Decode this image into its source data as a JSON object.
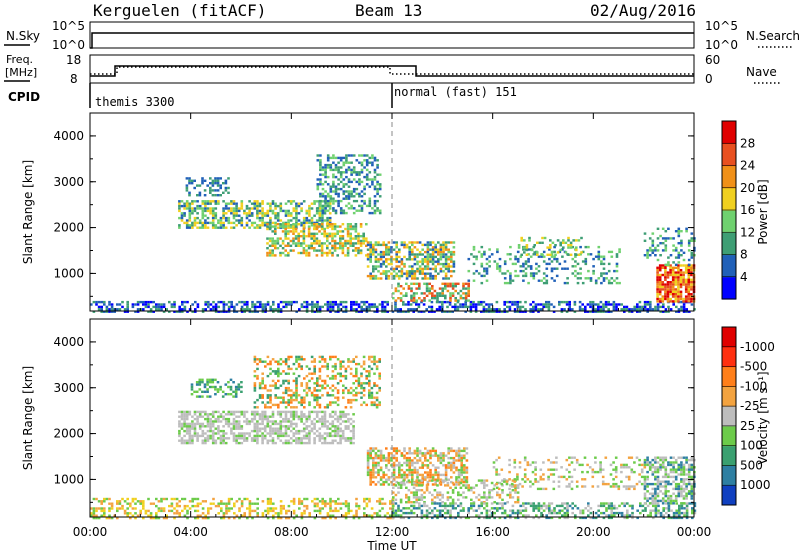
{
  "header": {
    "station": "Kerguelen (fitACF)",
    "beam": "Beam 13",
    "date": "02/Aug/2016"
  },
  "colors": {
    "axis": "#000000",
    "grid_dash": "#888888",
    "background": "#ffffff"
  },
  "sky_panel": {
    "left_label": "N.Sky",
    "left_ticks": [
      "10^5",
      "10^0"
    ],
    "right_ticks": [
      "10^5",
      "10^0"
    ],
    "right_label": "N.Search"
  },
  "freq_panel": {
    "left_label_1": "Freq.",
    "left_label_2": "[MHz]",
    "left_ticks": [
      "18",
      "8"
    ],
    "right_ticks": [
      "60",
      "0"
    ],
    "right_label": "Nave",
    "cpid_label": "CPID"
  },
  "cpid": [
    {
      "label": "themis 3300",
      "start_hour": 0.0
    },
    {
      "label": "normal (fast) 151",
      "start_hour": 12.0
    }
  ],
  "chart_data": [
    {
      "type": "heatmap",
      "title": "",
      "ylabel": "Slant Range [km]",
      "xlabel": "",
      "y_ticks": [
        "1000",
        "2000",
        "3000",
        "4000"
      ],
      "ylim": [
        180,
        4500
      ],
      "xlim_hours": [
        0,
        24
      ],
      "colorbar_label": "Power [dB]",
      "colorbar_ticks": [
        "4",
        "8",
        "12",
        "16",
        "20",
        "24",
        "28"
      ],
      "colorbar_colors": [
        "#0000ff",
        "#2060b8",
        "#3e9e74",
        "#6fd16f",
        "#f0d020",
        "#f09018",
        "#e85020",
        "#e00000"
      ]
    },
    {
      "type": "heatmap",
      "title": "",
      "ylabel": "Slant Range [km]",
      "xlabel": "Time UT",
      "y_ticks": [
        "1000",
        "2000",
        "3000",
        "4000"
      ],
      "ylim": [
        180,
        4500
      ],
      "xlim_hours": [
        0,
        24
      ],
      "colorbar_label": "Velocity  [m s⁻¹]",
      "colorbar_ticks": [
        "1000",
        "500",
        "100",
        "25",
        "-25",
        "-100",
        "-500",
        "-1000"
      ],
      "colorbar_colors": [
        "#1040c0",
        "#2e7fa2",
        "#3aa070",
        "#6ccb4a",
        "#bdbdbd",
        "#f3a340",
        "#ff7f1a",
        "#ff3010",
        "#e00000"
      ]
    }
  ],
  "x_ticks": [
    "00:00",
    "04:00",
    "08:00",
    "12:00",
    "16:00",
    "20:00",
    "00:00"
  ],
  "x_label": "Time UT",
  "blobs_power": [
    {
      "h0": 0.0,
      "h1": 24.0,
      "r0": 180,
      "r1": 400,
      "c": [
        "#0000ff",
        "#2060b8",
        "#3e9e74"
      ],
      "d": 0.55
    },
    {
      "h0": 3.5,
      "h1": 9.5,
      "r0": 2000,
      "r1": 2600,
      "c": [
        "#2060b8",
        "#3e9e74",
        "#6fd16f",
        "#f0d020"
      ],
      "d": 0.6
    },
    {
      "h0": 3.8,
      "h1": 5.5,
      "r0": 2700,
      "r1": 3100,
      "c": [
        "#2060b8",
        "#3e9e74"
      ],
      "d": 0.4
    },
    {
      "h0": 7.0,
      "h1": 11.0,
      "r0": 1400,
      "r1": 2100,
      "c": [
        "#3e9e74",
        "#6fd16f",
        "#f0d020",
        "#f09018"
      ],
      "d": 0.55
    },
    {
      "h0": 9.0,
      "h1": 11.5,
      "r0": 2300,
      "r1": 3600,
      "c": [
        "#2060b8",
        "#3e9e74",
        "#6fd16f"
      ],
      "d": 0.45
    },
    {
      "h0": 11.0,
      "h1": 14.5,
      "r0": 900,
      "r1": 1700,
      "c": [
        "#2060b8",
        "#3e9e74",
        "#6fd16f",
        "#f0d020",
        "#f09018"
      ],
      "d": 0.6
    },
    {
      "h0": 12.0,
      "h1": 15.0,
      "r0": 400,
      "r1": 800,
      "c": [
        "#3e9e74",
        "#6fd16f",
        "#f09018",
        "#e85020"
      ],
      "d": 0.5
    },
    {
      "h0": 15.0,
      "h1": 21.0,
      "r0": 800,
      "r1": 1600,
      "c": [
        "#2060b8",
        "#3e9e74",
        "#6fd16f"
      ],
      "d": 0.25
    },
    {
      "h0": 17.0,
      "h1": 19.5,
      "r0": 1400,
      "r1": 1800,
      "c": [
        "#3e9e74",
        "#6fd16f",
        "#f0d020"
      ],
      "d": 0.4
    },
    {
      "h0": 22.5,
      "h1": 24.0,
      "r0": 400,
      "r1": 1200,
      "c": [
        "#f0d020",
        "#f09018",
        "#e85020",
        "#e00000"
      ],
      "d": 0.85
    },
    {
      "h0": 22.0,
      "h1": 24.0,
      "r0": 1200,
      "r1": 2000,
      "c": [
        "#2060b8",
        "#3e9e74",
        "#6fd16f"
      ],
      "d": 0.3
    }
  ],
  "blobs_velocity": [
    {
      "h0": 0.0,
      "h1": 12.0,
      "r0": 180,
      "r1": 600,
      "c": [
        "#f3a340",
        "#f0d020",
        "#6ccb4a"
      ],
      "d": 0.4
    },
    {
      "h0": 3.5,
      "h1": 10.5,
      "r0": 1800,
      "r1": 2500,
      "c": [
        "#bdbdbd",
        "#bdbdbd",
        "#bdbdbd",
        "#6ccb4a"
      ],
      "d": 0.6
    },
    {
      "h0": 4.0,
      "h1": 6.0,
      "r0": 2800,
      "r1": 3200,
      "c": [
        "#2e7fa2",
        "#3aa070",
        "#6ccb4a"
      ],
      "d": 0.4
    },
    {
      "h0": 6.5,
      "h1": 11.5,
      "r0": 2600,
      "r1": 3700,
      "c": [
        "#f3a340",
        "#ff7f1a",
        "#3aa070",
        "#6ccb4a"
      ],
      "d": 0.4
    },
    {
      "h0": 11.0,
      "h1": 15.0,
      "r0": 900,
      "r1": 1700,
      "c": [
        "#f3a340",
        "#ff7f1a",
        "#6ccb4a",
        "#bdbdbd"
      ],
      "d": 0.6
    },
    {
      "h0": 12.0,
      "h1": 17.0,
      "r0": 500,
      "r1": 1000,
      "c": [
        "#6ccb4a",
        "#bdbdbd",
        "#f3a340"
      ],
      "d": 0.4
    },
    {
      "h0": 16.0,
      "h1": 22.0,
      "r0": 800,
      "r1": 1500,
      "c": [
        "#6ccb4a",
        "#bdbdbd",
        "#f3a340"
      ],
      "d": 0.25
    },
    {
      "h0": 12.0,
      "h1": 24.0,
      "r0": 180,
      "r1": 500,
      "c": [
        "#3aa070",
        "#2e7fa2",
        "#6ccb4a",
        "#bdbdbd"
      ],
      "d": 0.45
    },
    {
      "h0": 22.0,
      "h1": 24.0,
      "r0": 500,
      "r1": 1500,
      "c": [
        "#bdbdbd",
        "#6ccb4a",
        "#2e7fa2"
      ],
      "d": 0.6
    }
  ]
}
